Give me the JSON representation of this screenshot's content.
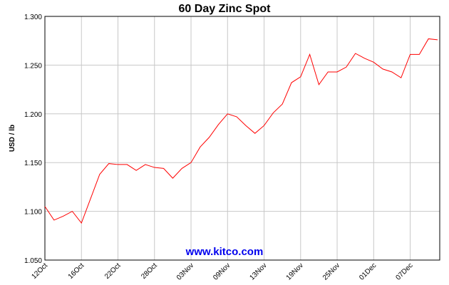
{
  "chart_data": {
    "type": "line",
    "title": "60 Day Zinc Spot",
    "y_label": "USD / lb",
    "watermark": "www.kitco.com",
    "categories": [
      "12Oct",
      null,
      null,
      null,
      "16Oct",
      null,
      null,
      null,
      "22Oct",
      null,
      null,
      null,
      "28Oct",
      null,
      null,
      null,
      "03Nov",
      null,
      null,
      null,
      "09Nov",
      null,
      null,
      null,
      "13Nov",
      null,
      null,
      null,
      "19Nov",
      null,
      null,
      null,
      "25Nov",
      null,
      null,
      null,
      "01Dec",
      null,
      null,
      null,
      "07Dec",
      null,
      null,
      null
    ],
    "series": [
      {
        "name": "Zinc",
        "color": "#ff0000",
        "values": [
          1.105,
          1.091,
          1.095,
          1.1,
          1.088,
          1.113,
          1.138,
          1.149,
          1.148,
          1.148,
          1.142,
          1.148,
          1.145,
          1.144,
          1.134,
          1.144,
          1.15,
          1.166,
          1.176,
          1.189,
          1.2,
          1.197,
          1.188,
          1.18,
          1.188,
          1.201,
          1.21,
          1.232,
          1.238,
          1.261,
          1.23,
          1.243,
          1.243,
          1.248,
          1.262,
          1.257,
          1.253,
          1.246,
          1.243,
          1.237,
          1.261,
          1.261,
          1.277,
          1.276
        ]
      }
    ],
    "ylim": [
      1.05,
      1.3
    ],
    "yticks": [
      {
        "value": 1.05,
        "label": "1.050"
      },
      {
        "value": 1.1,
        "label": "1.100"
      },
      {
        "value": 1.15,
        "label": "1.150"
      },
      {
        "value": 1.2,
        "label": "1.200"
      },
      {
        "value": 1.25,
        "label": "1.250"
      },
      {
        "value": 1.3,
        "label": "1.300"
      }
    ],
    "grid": true
  }
}
